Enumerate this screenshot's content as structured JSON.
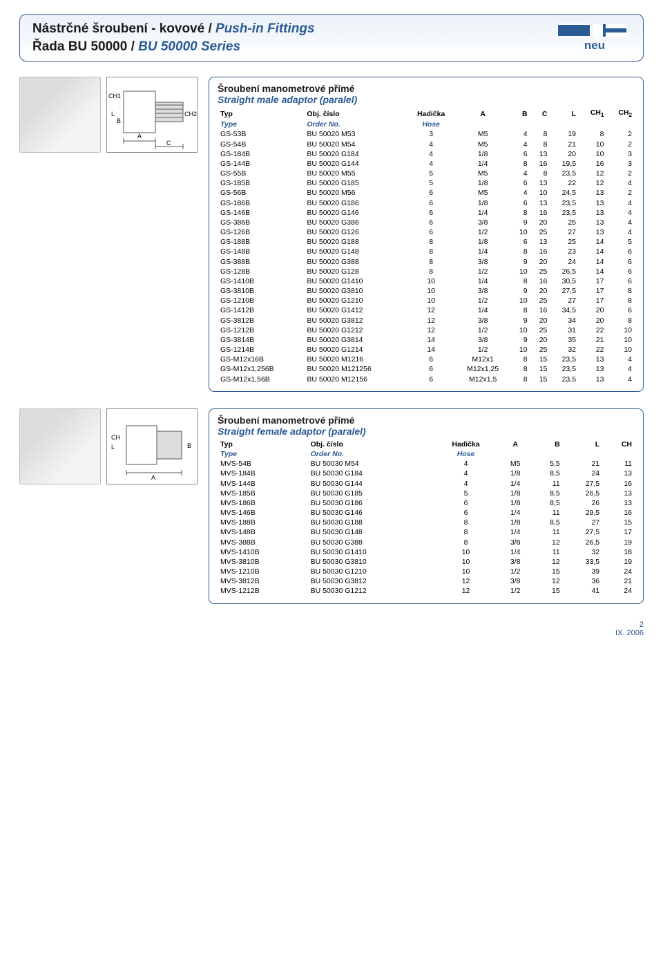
{
  "header": {
    "line1_cz": "Nástrčné šroubení - kovové / ",
    "line1_en": "Push-in Fittings",
    "line2_cz": "Řada BU 50000 / ",
    "line2_en": "BU 50000 Series",
    "logo_text": "neu"
  },
  "section1": {
    "title_cz": "Šroubení manometrové přímé",
    "title_en": "Straight male adaptor (paralel)",
    "diagram_labels": {
      "CH1": "CH1",
      "CH2": "CH2",
      "L": "L",
      "B": "B",
      "A": "A",
      "C": "C"
    },
    "headers": {
      "typ_cz": "Typ",
      "typ_en": "Type",
      "obj_cz": "Obj. číslo",
      "obj_en": "Order No.",
      "had_cz": "Hadička",
      "had_en": "Hose",
      "A": "A",
      "B": "B",
      "C": "C",
      "L": "L",
      "CH1": "CH",
      "CH1s": "1",
      "CH2": "CH",
      "CH2s": "2"
    },
    "columns": [
      "type",
      "order",
      "had",
      "A",
      "B",
      "C",
      "L",
      "CH1",
      "CH2"
    ],
    "rows": [
      [
        "GS-53B",
        "BU 50020 M53",
        "3",
        "M5",
        "4",
        "8",
        "19",
        "8",
        "2"
      ],
      [
        "GS-54B",
        "BU 50020 M54",
        "4",
        "M5",
        "4",
        "8",
        "21",
        "10",
        "2"
      ],
      [
        "GS-184B",
        "BU 50020 G184",
        "4",
        "1/8",
        "6",
        "13",
        "20",
        "10",
        "3"
      ],
      [
        "GS-144B",
        "BU 50020 G144",
        "4",
        "1/4",
        "8",
        "16",
        "19,5",
        "16",
        "3"
      ],
      [
        "GS-55B",
        "BU 50020 M55",
        "5",
        "M5",
        "4",
        "8",
        "23,5",
        "12",
        "2"
      ],
      [
        "GS-185B",
        "BU 50020 G185",
        "5",
        "1/8",
        "6",
        "13",
        "22",
        "12",
        "4"
      ],
      [
        "GS-56B",
        "BU 50020 M56",
        "6",
        "M5",
        "4",
        "10",
        "24,5",
        "13",
        "2"
      ],
      [
        "GS-186B",
        "BU 50020 G186",
        "6",
        "1/8",
        "6",
        "13",
        "23,5",
        "13",
        "4"
      ],
      [
        "GS-146B",
        "BU 50020 G146",
        "6",
        "1/4",
        "8",
        "16",
        "23,5",
        "13",
        "4"
      ],
      [
        "GS-386B",
        "BU 50020 G386",
        "6",
        "3/8",
        "9",
        "20",
        "25",
        "13",
        "4"
      ],
      [
        "GS-126B",
        "BU 50020 G126",
        "6",
        "1/2",
        "10",
        "25",
        "27",
        "13",
        "4"
      ],
      [
        "GS-188B",
        "BU 50020 G188",
        "8",
        "1/8",
        "6",
        "13",
        "25",
        "14",
        "5"
      ],
      [
        "GS-148B",
        "BU 50020 G148",
        "8",
        "1/4",
        "8",
        "16",
        "23",
        "14",
        "6"
      ],
      [
        "GS-388B",
        "BU 50020 G388",
        "8",
        "3/8",
        "9",
        "20",
        "24",
        "14",
        "6"
      ],
      [
        "GS-128B",
        "BU 50020 G128",
        "8",
        "1/2",
        "10",
        "25",
        "26,5",
        "14",
        "6"
      ],
      [
        "GS-1410B",
        "BU 50020 G1410",
        "10",
        "1/4",
        "8",
        "16",
        "30,5",
        "17",
        "6"
      ],
      [
        "GS-3810B",
        "BU 50020 G3810",
        "10",
        "3/8",
        "9",
        "20",
        "27,5",
        "17",
        "8"
      ],
      [
        "GS-1210B",
        "BU 50020 G1210",
        "10",
        "1/2",
        "10",
        "25",
        "27",
        "17",
        "8"
      ],
      [
        "GS-1412B",
        "BU 50020 G1412",
        "12",
        "1/4",
        "8",
        "16",
        "34,5",
        "20",
        "6"
      ],
      [
        "GS-3812B",
        "BU 50020 G3812",
        "12",
        "3/8",
        "9",
        "20",
        "34",
        "20",
        "8"
      ],
      [
        "GS-1212B",
        "BU 50020 G1212",
        "12",
        "1/2",
        "10",
        "25",
        "31",
        "22",
        "10"
      ],
      [
        "GS-3814B",
        "BU 50020 G3814",
        "14",
        "3/8",
        "9",
        "20",
        "35",
        "21",
        "10"
      ],
      [
        "GS-1214B",
        "BU 50020 G1214",
        "14",
        "1/2",
        "10",
        "25",
        "32",
        "22",
        "10"
      ],
      [
        "GS-M12x16B",
        "BU 50020 M1216",
        "6",
        "M12x1",
        "8",
        "15",
        "23,5",
        "13",
        "4"
      ],
      [
        "GS-M12x1,256B",
        "BU 50020 M121256",
        "6",
        "M12x1,25",
        "8",
        "15",
        "23,5",
        "13",
        "4"
      ],
      [
        "GS-M12x1,56B",
        "BU 50020 M12156",
        "6",
        "M12x1,5",
        "8",
        "15",
        "23,5",
        "13",
        "4"
      ]
    ]
  },
  "section2": {
    "title_cz": "Šroubení manometrové přímé",
    "title_en": "Straight female adaptor (paralel)",
    "diagram_labels": {
      "CH": "CH",
      "L": "L",
      "B": "B",
      "A": "A"
    },
    "headers": {
      "typ_cz": "Typ",
      "typ_en": "Type",
      "obj_cz": "Obj. číslo",
      "obj_en": "Order No.",
      "had_cz": "Hadička",
      "had_en": "Hose",
      "A": "A",
      "B": "B",
      "L": "L",
      "CH": "CH"
    },
    "columns": [
      "type",
      "order",
      "had",
      "A",
      "B",
      "L",
      "CH"
    ],
    "rows": [
      [
        "MVS-54B",
        "BU 50030 M54",
        "4",
        "M5",
        "5,5",
        "21",
        "11"
      ],
      [
        "MVS-184B",
        "BU 50030 G184",
        "4",
        "1/8",
        "8,5",
        "24",
        "13"
      ],
      [
        "MVS-144B",
        "BU 50030 G144",
        "4",
        "1/4",
        "11",
        "27,5",
        "16"
      ],
      [
        "MVS-185B",
        "BU 50030 G185",
        "5",
        "1/8",
        "8,5",
        "26,5",
        "13"
      ],
      [
        "MVS-186B",
        "BU 50030 G186",
        "6",
        "1/8",
        "8,5",
        "26",
        "13"
      ],
      [
        "MVS-146B",
        "BU 50030 G146",
        "6",
        "1/4",
        "11",
        "29,5",
        "16"
      ],
      [
        "MVS-188B",
        "BU 50030 G188",
        "8",
        "1/8",
        "8,5",
        "27",
        "15"
      ],
      [
        "MVS-148B",
        "BU 50030 G148",
        "8",
        "1/4",
        "11",
        "27,5",
        "17"
      ],
      [
        "MVS-388B",
        "BU 50030 G388",
        "8",
        "3/8",
        "12",
        "26,5",
        "19"
      ],
      [
        "MVS-1410B",
        "BU 50030 G1410",
        "10",
        "1/4",
        "11",
        "32",
        "18"
      ],
      [
        "MVS-3810B",
        "BU 50030 G3810",
        "10",
        "3/8",
        "12",
        "33,5",
        "19"
      ],
      [
        "MVS-1210B",
        "BU 50030 G1210",
        "10",
        "1/2",
        "15",
        "39",
        "24"
      ],
      [
        "MVS-3812B",
        "BU 50030 G3812",
        "12",
        "3/8",
        "12",
        "36",
        "21"
      ],
      [
        "MVS-1212B",
        "BU 50030 G1212",
        "12",
        "1/2",
        "15",
        "41",
        "24"
      ]
    ]
  },
  "footer": {
    "page": "2",
    "date": "IX. 2006"
  },
  "style": {
    "accent": "#2b5a94",
    "border_color": "#2b5a94",
    "bg": "#ffffff",
    "font_body": 10.5,
    "font_title": 19,
    "row_line_height": 1.35
  }
}
